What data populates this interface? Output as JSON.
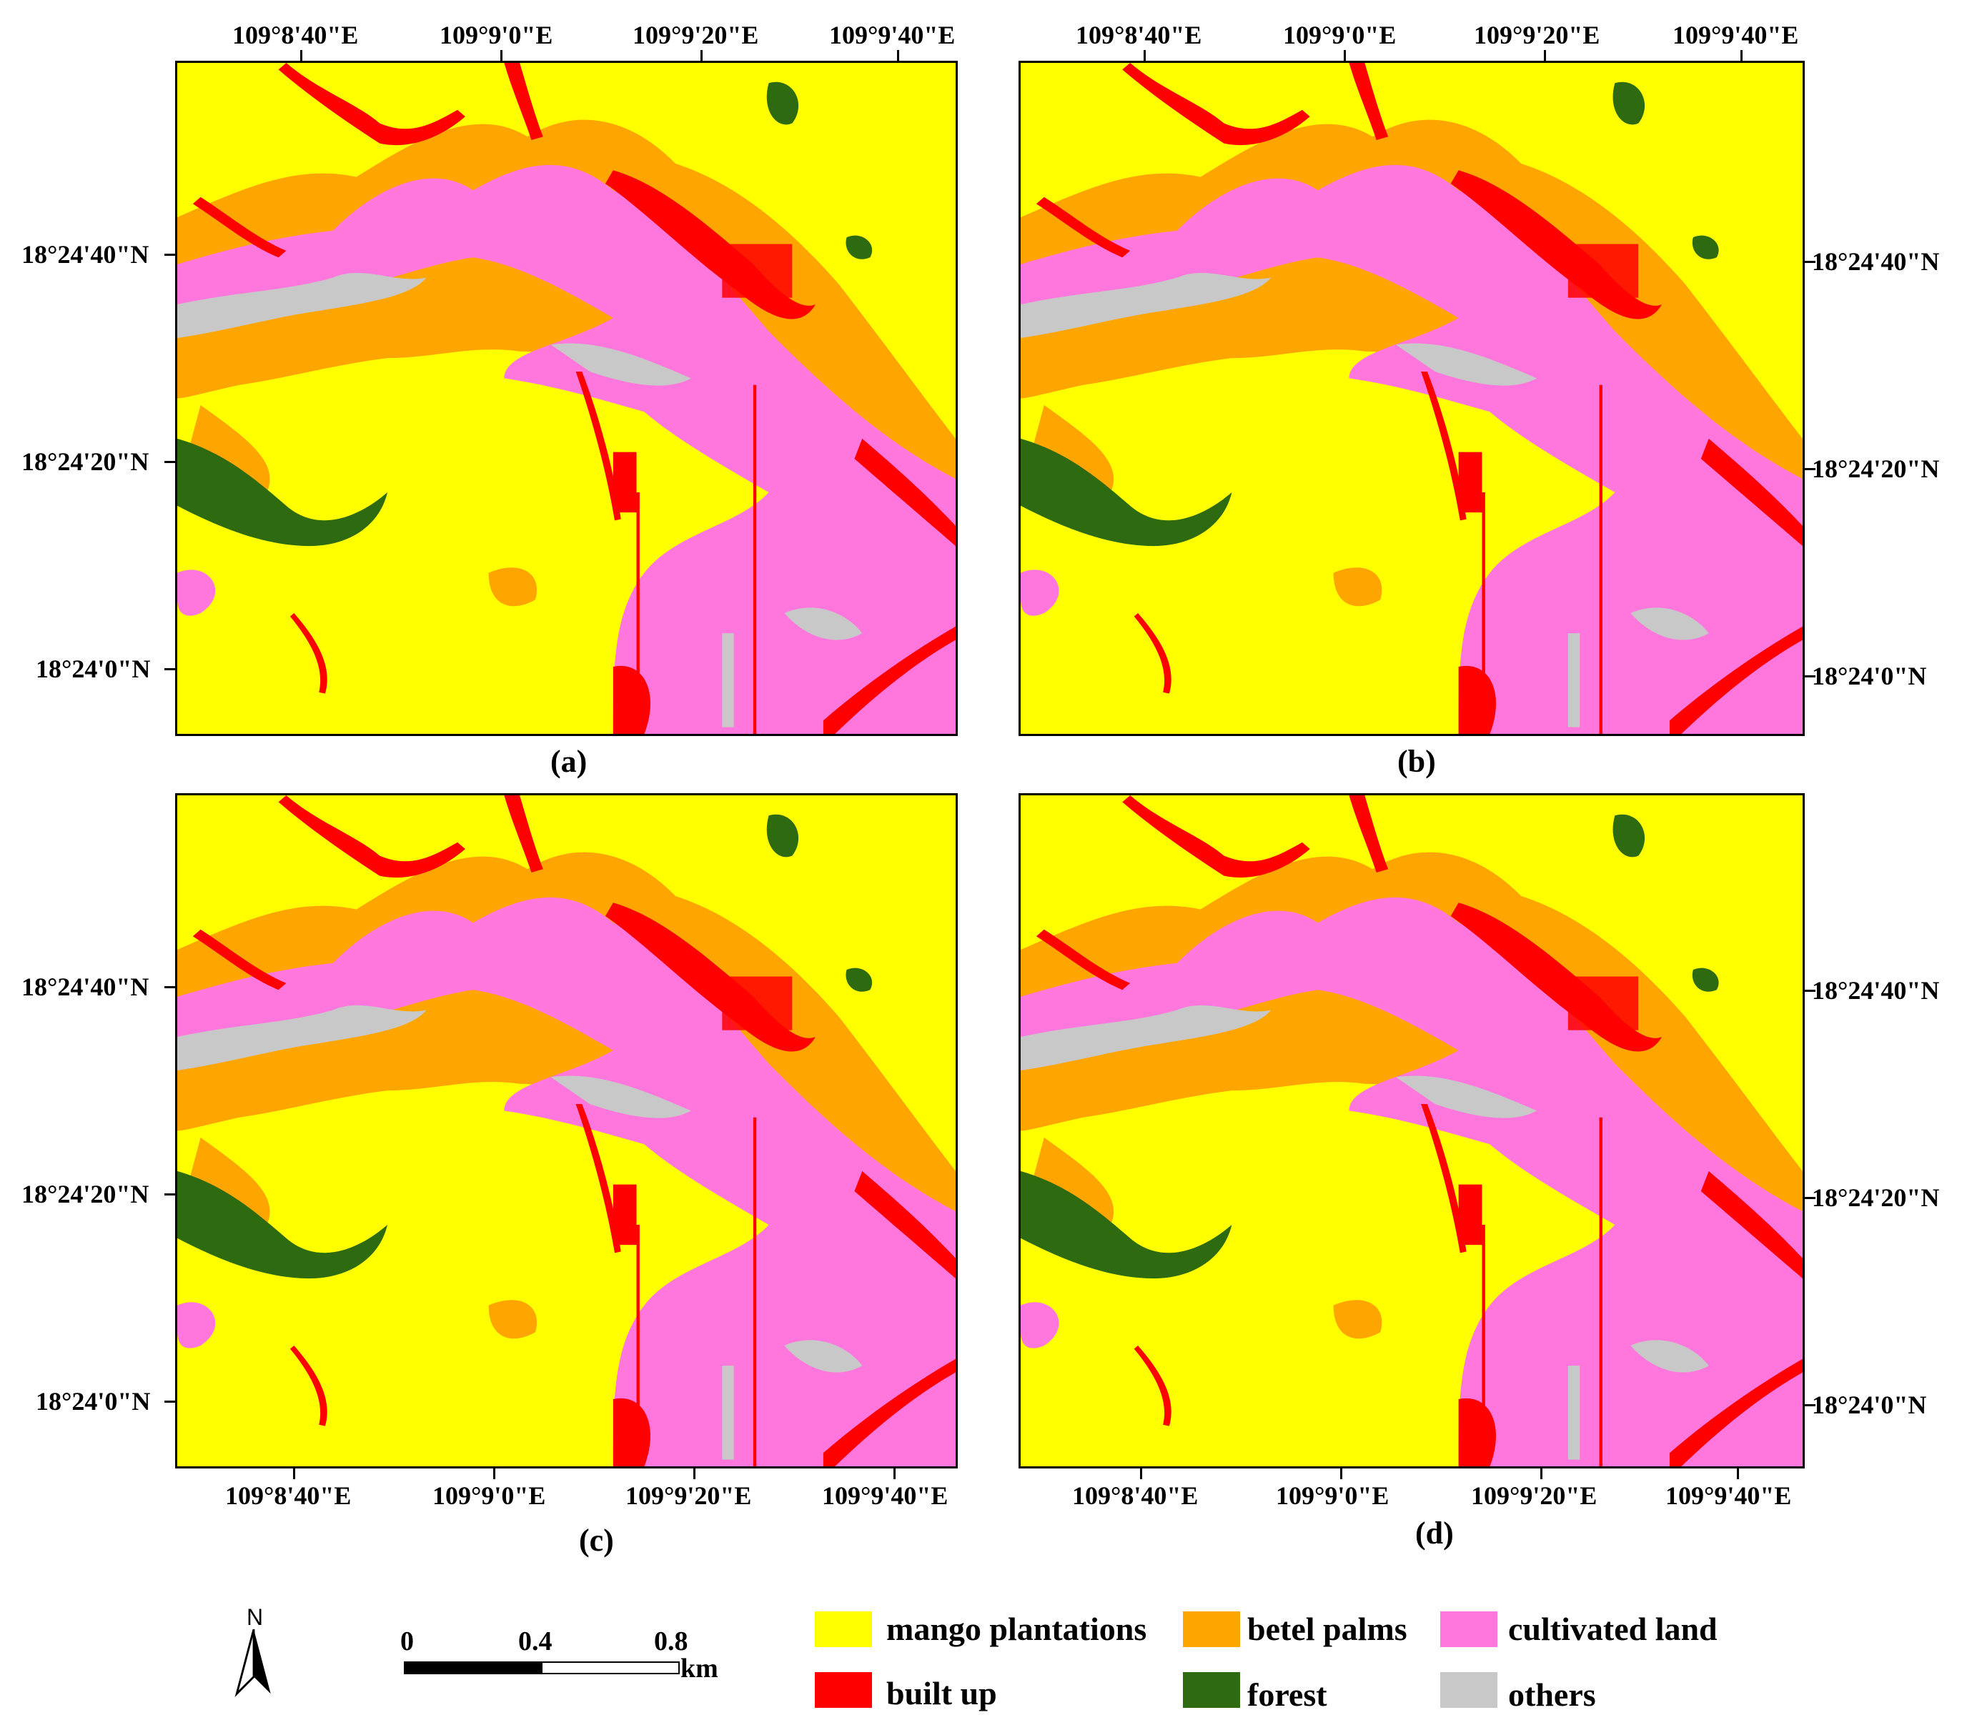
{
  "colors": {
    "mango": "#ffff00",
    "betel": "#ffa500",
    "cultivated": "#ff77dd",
    "builtup": "#ff0000",
    "forest": "#2e6b10",
    "others": "#c8c8c8"
  },
  "panels": [
    {
      "label": "(a)",
      "top_ticks": [
        "109°8'40\"E",
        "109°9'0\"E",
        "109°9'20\"E",
        "109°9'40\"E"
      ],
      "left_ticks": [
        "18°24'40\"N",
        "18°24'20\"N",
        "18°24'0\"N"
      ]
    },
    {
      "label": "(b)",
      "top_ticks": [
        "109°8'40\"E",
        "109°9'0\"E",
        "109°9'20\"E",
        "109°9'40\"E"
      ],
      "right_ticks": [
        "18°24'40\"N",
        "18°24'20\"N",
        "18°24'0\"N"
      ]
    },
    {
      "label": "(c)",
      "bottom_ticks": [
        "109°8'40\"E",
        "109°9'0\"E",
        "109°9'20\"E",
        "109°9'40\"E"
      ],
      "left_ticks": [
        "18°24'40\"N",
        "18°24'20\"N",
        "18°24'0\"N"
      ]
    },
    {
      "label": "(d)",
      "bottom_ticks": [
        "109°8'40\"E",
        "109°9'0\"E",
        "109°9'20\"E",
        "109°9'40\"E"
      ],
      "right_ticks": [
        "18°24'40\"N",
        "18°24'20\"N",
        "18°24'0\"N"
      ]
    }
  ],
  "north_arrow": {
    "label": "N"
  },
  "scale_bar": {
    "labels": [
      "0",
      "0.4",
      "0.8"
    ],
    "unit": "km"
  },
  "legend": [
    {
      "key": "mango",
      "label": "mango plantations"
    },
    {
      "key": "betel",
      "label": "betel palms"
    },
    {
      "key": "cultivated",
      "label": "cultivated land"
    },
    {
      "key": "builtup",
      "label": "built up"
    },
    {
      "key": "forest",
      "label": "forest"
    },
    {
      "key": "others",
      "label": "others"
    }
  ]
}
